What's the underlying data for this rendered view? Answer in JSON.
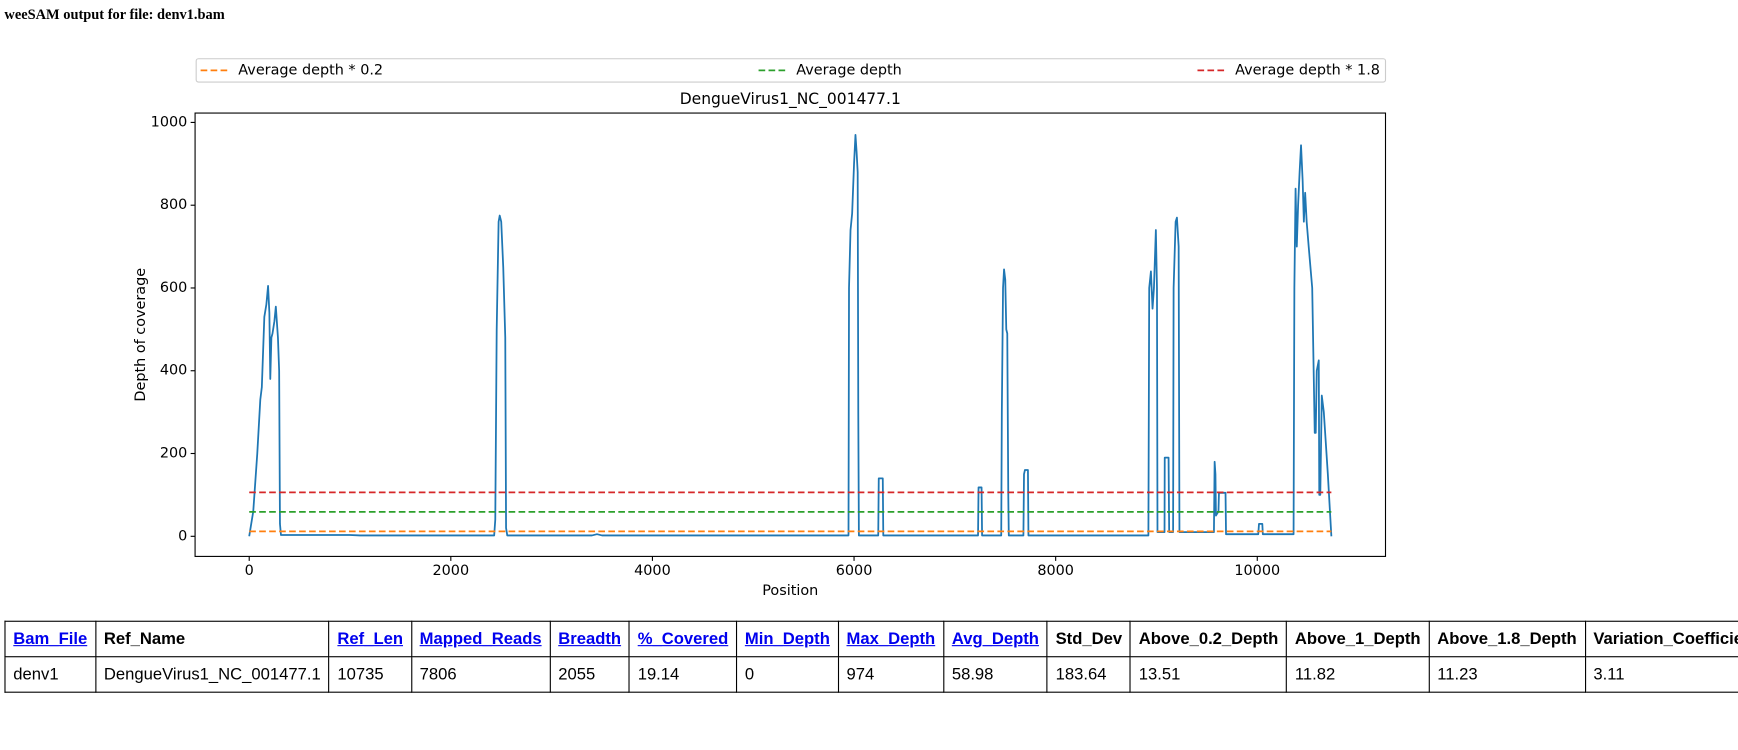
{
  "title": "weeSAM output for file: denv1.bam",
  "chart_data": {
    "type": "line",
    "title": "DengueVirus1_NC_001477.1",
    "xlabel": "Position",
    "ylabel": "Depth of coverage",
    "xlim": [
      -537,
      11272
    ],
    "ylim": [
      -48.7,
      1022.7
    ],
    "xticks": [
      0,
      2000,
      4000,
      6000,
      8000,
      10000
    ],
    "yticks": [
      0,
      200,
      400,
      600,
      800,
      1000
    ],
    "legend": "top",
    "series": [
      {
        "color": "#1f77b4",
        "dashed": false,
        "x": [
          0,
          40,
          80,
          110,
          125,
          150,
          170,
          187,
          200,
          209,
          220,
          231,
          250,
          264,
          285,
          297,
          305,
          315,
          1000,
          1100,
          2430,
          2441,
          2455,
          2474,
          2485,
          2500,
          2520,
          2540,
          2548,
          2560,
          3400,
          3450,
          3500,
          5945,
          5950,
          5965,
          5981,
          6000,
          6014,
          6025,
          6036,
          6042,
          6048,
          6240,
          6245,
          6285,
          6290,
          7230,
          7235,
          7265,
          7270,
          7460,
          7466,
          7478,
          7488,
          7500,
          7510,
          7520,
          7530,
          7535,
          7680,
          7686,
          7695,
          7725,
          7730,
          8920,
          8928,
          8945,
          8961,
          8975,
          8994,
          9005,
          9010,
          9080,
          9082,
          9120,
          9126,
          9165,
          9170,
          9190,
          9203,
          9220,
          9228,
          9570,
          9577,
          9585,
          9590,
          9615,
          9620,
          9685,
          9690,
          10010,
          10017,
          10050,
          10055,
          10360,
          10368,
          10380,
          10392,
          10405,
          10420,
          10434,
          10450,
          10462,
          10475,
          10490,
          10510,
          10545,
          10570,
          10580,
          10590,
          10610,
          10615,
          10625,
          10640,
          10660,
          10700,
          10735
        ],
        "values": [
          0,
          60,
          200,
          330,
          360,
          530,
          560,
          605,
          540,
          380,
          480,
          490,
          520,
          555,
          480,
          400,
          30,
          3,
          3,
          2,
          2,
          40,
          500,
          760,
          775,
          760,
          650,
          480,
          20,
          2,
          2,
          5,
          2,
          2,
          600,
          740,
          780,
          900,
          970,
          930,
          880,
          300,
          2,
          2,
          140,
          140,
          2,
          2,
          118,
          118,
          2,
          2,
          300,
          600,
          645,
          620,
          500,
          490,
          100,
          2,
          2,
          150,
          160,
          160,
          2,
          2,
          600,
          640,
          550,
          600,
          740,
          600,
          10,
          10,
          190,
          190,
          10,
          10,
          600,
          760,
          770,
          700,
          10,
          10,
          180,
          150,
          50,
          60,
          105,
          105,
          5,
          5,
          30,
          30,
          5,
          5,
          600,
          840,
          700,
          800,
          880,
          945,
          860,
          760,
          830,
          760,
          700,
          600,
          250,
          250,
          400,
          425,
          100,
          100,
          340,
          300,
          150,
          0
        ]
      },
      {
        "name": "Average depth * 0.2",
        "color": "#ff7f0e",
        "dashed": true,
        "x": [
          0,
          10735
        ],
        "values": [
          11.796,
          11.796
        ]
      },
      {
        "name": "Average depth",
        "color": "#2ca02c",
        "dashed": true,
        "x": [
          0,
          10735
        ],
        "values": [
          58.98,
          58.98
        ]
      },
      {
        "name": "Average depth * 1.8",
        "color": "#d62728",
        "dashed": true,
        "x": [
          0,
          10735
        ],
        "values": [
          106.164,
          106.164
        ]
      }
    ]
  },
  "table": {
    "header": [
      {
        "text": "Bam_File",
        "link": true
      },
      {
        "text": "Ref_Name",
        "link": false
      },
      {
        "text": "Ref_Len",
        "link": true
      },
      {
        "text": "Mapped_Reads",
        "link": true
      },
      {
        "text": "Breadth",
        "link": true
      },
      {
        "text": "%_Covered",
        "link": true
      },
      {
        "text": "Min_Depth",
        "link": true
      },
      {
        "text": "Max_Depth",
        "link": true
      },
      {
        "text": "Avg_Depth",
        "link": true
      },
      {
        "text": "Std_Dev",
        "link": false
      },
      {
        "text": "Above_0.2_Depth",
        "link": false
      },
      {
        "text": "Above_1_Depth",
        "link": false
      },
      {
        "text": "Above_1.8_Depth",
        "link": false
      },
      {
        "text": "Variation_Coefficient",
        "link": false
      }
    ],
    "rows": [
      [
        "denv1",
        "DengueVirus1_NC_001477.1",
        10735,
        7806,
        2055,
        19.14,
        0,
        974,
        58.98,
        183.64,
        13.51,
        11.82,
        11.23,
        3.11
      ]
    ]
  }
}
